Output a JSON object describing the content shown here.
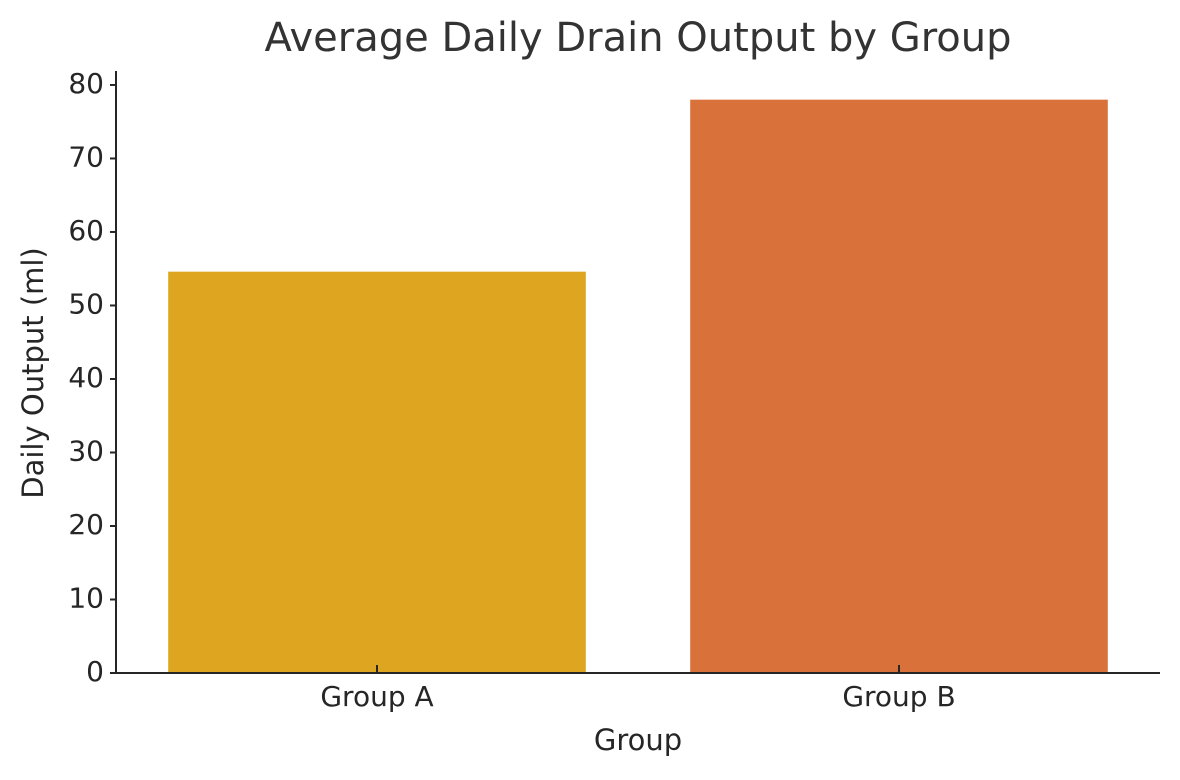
{
  "chart_data": {
    "type": "bar",
    "title": "Average Daily Drain Output by Group",
    "x_label": "Group",
    "y_label": "Daily Output (ml)",
    "categories": [
      "Group A",
      "Group B"
    ],
    "values": [
      54.6,
      78.0
    ],
    "colors": [
      "#dea520",
      "#d9713b"
    ],
    "ylim": [
      0,
      81.9
    ],
    "yticks": [
      0,
      10,
      20,
      30,
      40,
      50,
      60,
      70,
      80
    ],
    "grid": false
  }
}
